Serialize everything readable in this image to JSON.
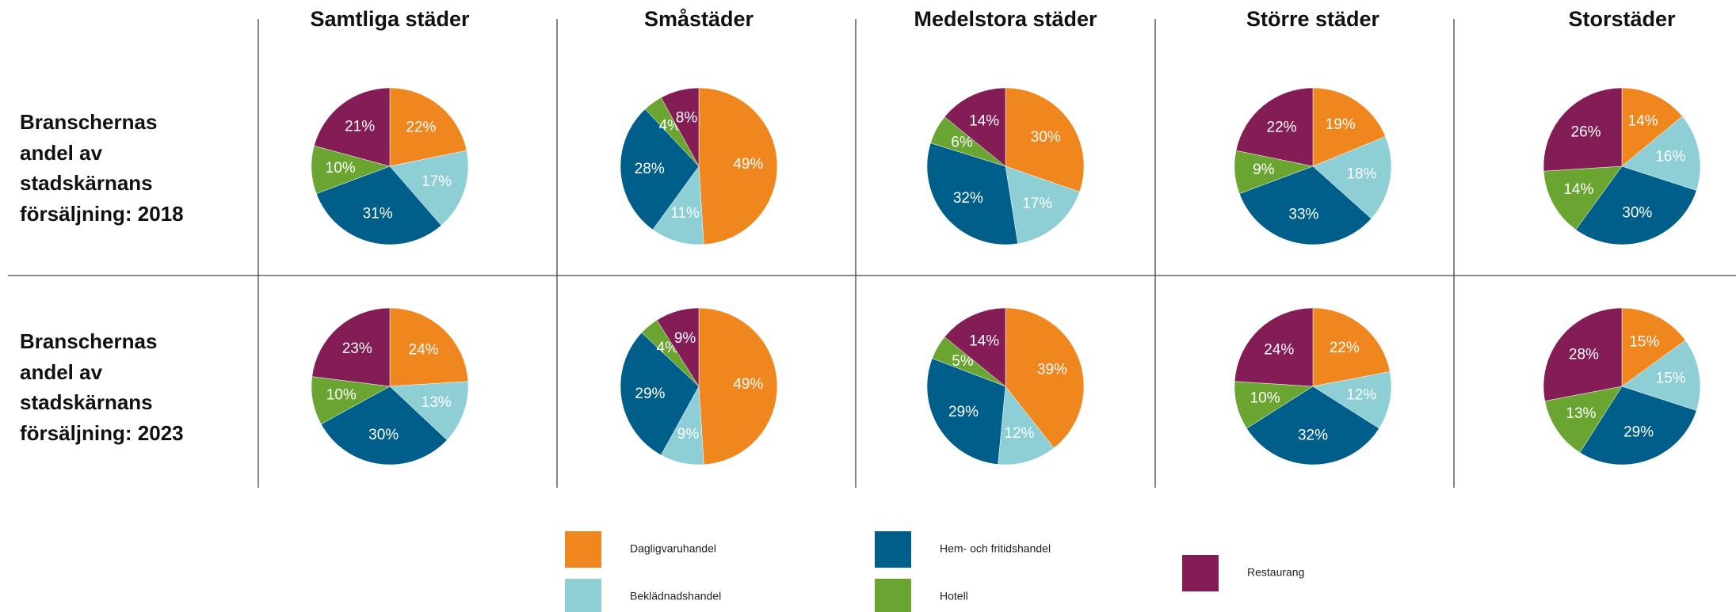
{
  "column_titles": [
    "Samtliga städer",
    "Småstäder",
    "Medelstora städer",
    "Större städer",
    "Storstäder"
  ],
  "row_titles": [
    "Branschernas andel av stadskärnans försäljning: 2018",
    "Branschernas andel av stadskärnans försäljning: 2023"
  ],
  "categories": [
    "Dagligvaruhandel",
    "Beklädnadshandel",
    "Hem- och fritidshandel",
    "Hotell",
    "Restaurang"
  ],
  "colors": [
    "#f0861e",
    "#8ecfd6",
    "#005f8a",
    "#6aa532",
    "#841d55"
  ],
  "chart_data": [
    {
      "type": "pie",
      "values": [
        22,
        17,
        31,
        10,
        21
      ],
      "value_labels": [
        "22%",
        "17%",
        "31%",
        "10%",
        "21%"
      ]
    },
    {
      "type": "pie",
      "values": [
        49,
        11,
        28,
        4,
        8
      ],
      "value_labels": [
        "49%",
        "11%",
        "28%",
        "4%",
        "8%"
      ]
    },
    {
      "type": "pie",
      "values": [
        30,
        17,
        32,
        6,
        14
      ],
      "value_labels": [
        "30%",
        "17%",
        "32%",
        "6%",
        "14%"
      ]
    },
    {
      "type": "pie",
      "values": [
        19,
        18,
        33,
        9,
        22
      ],
      "value_labels": [
        "19%",
        "18%",
        "33%",
        "9%",
        "22%"
      ]
    },
    {
      "type": "pie",
      "values": [
        14,
        16,
        30,
        14,
        26
      ],
      "value_labels": [
        "14%",
        "16%",
        "30%",
        "14%",
        "26%"
      ]
    },
    {
      "type": "pie",
      "values": [
        24,
        13,
        30,
        10,
        23
      ],
      "value_labels": [
        "24%",
        "13%",
        "30%",
        "10%",
        "23%"
      ]
    },
    {
      "type": "pie",
      "values": [
        49,
        9,
        29,
        4,
        9
      ],
      "value_labels": [
        "49%",
        "9%",
        "29%",
        "4%",
        "9%"
      ]
    },
    {
      "type": "pie",
      "values": [
        39,
        12,
        29,
        5,
        14
      ],
      "value_labels": [
        "39%",
        "12%",
        "29%",
        "5%",
        "14%"
      ]
    },
    {
      "type": "pie",
      "values": [
        22,
        12,
        32,
        10,
        24
      ],
      "value_labels": [
        "22%",
        "12%",
        "32%",
        "10%",
        "24%"
      ]
    },
    {
      "type": "pie",
      "values": [
        15,
        15,
        29,
        13,
        28
      ],
      "value_labels": [
        "15%",
        "15%",
        "29%",
        "13%",
        "28%"
      ]
    }
  ]
}
